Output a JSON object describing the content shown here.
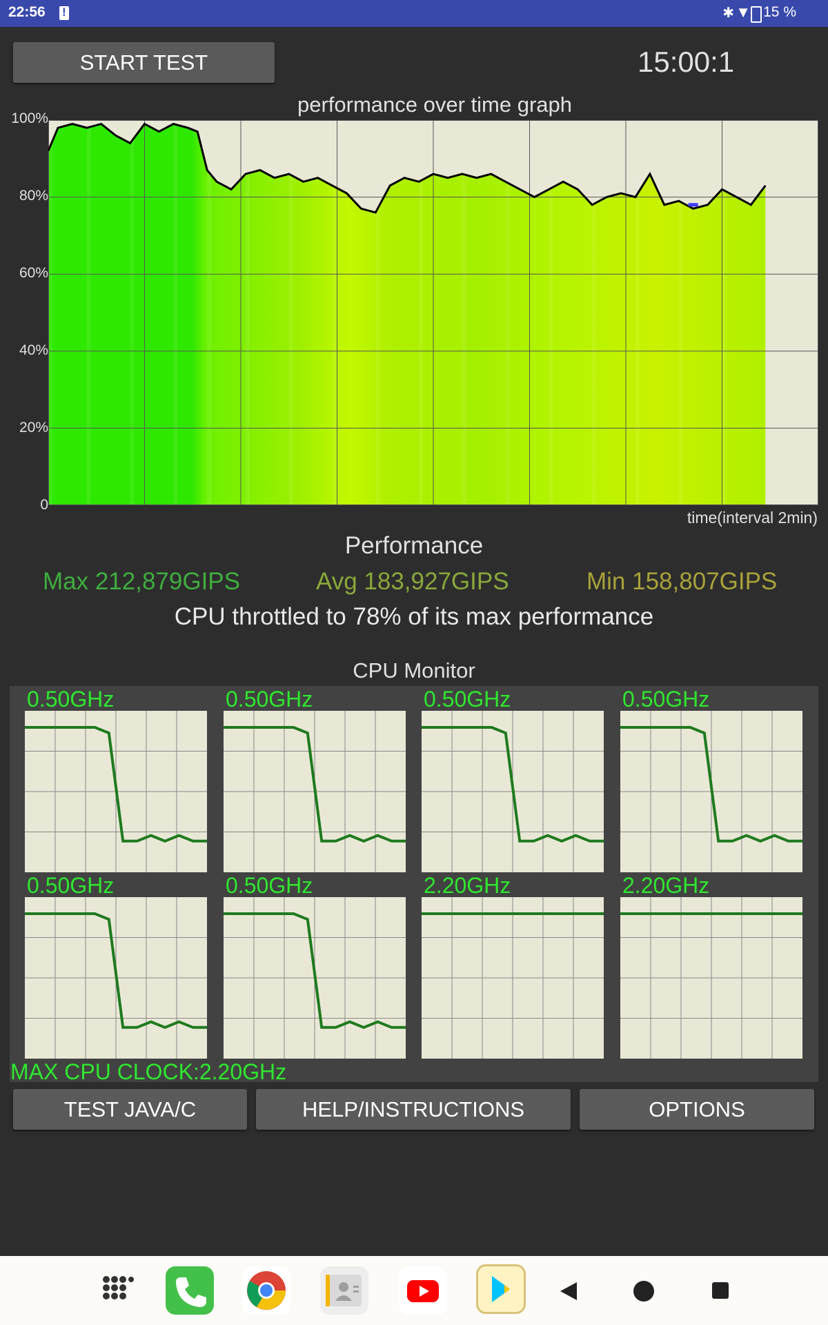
{
  "status_bar": {
    "time": "22:56",
    "battery_text": "15 %",
    "icons": [
      "notification-icon",
      "bluetooth-icon",
      "data-arrows-icon",
      "wifi-icon",
      "battery-icon"
    ]
  },
  "header": {
    "start_button": "START TEST",
    "timer": "15:00:1"
  },
  "graph": {
    "title": "performance over time graph",
    "x_label": "time(interval 2min)",
    "y_ticks": [
      "100%",
      "80%",
      "60%",
      "40%",
      "20%",
      "0"
    ],
    "line_color": "#000000",
    "avg_line_color": "#3c3cff"
  },
  "chart_data": {
    "type": "area",
    "title": "performance over time graph",
    "xlabel": "time(interval 2min)",
    "ylabel": "",
    "x_unit": "minutes",
    "x_range": [
      0,
      16
    ],
    "ylim": [
      0,
      100
    ],
    "y_ticks": [
      0,
      20,
      40,
      60,
      80,
      100
    ],
    "grid": true,
    "series": [
      {
        "x": [
          0,
          0.2,
          0.5,
          0.8,
          1.1,
          1.4,
          1.7,
          2.0,
          2.3,
          2.6,
          2.9,
          3.1,
          3.3,
          3.5,
          3.8,
          4.1,
          4.4,
          4.7,
          5.0,
          5.3,
          5.6,
          5.9,
          6.2,
          6.5,
          6.8,
          7.1,
          7.4,
          7.7,
          8.0,
          8.3,
          8.6,
          8.9,
          9.2,
          9.5,
          9.8,
          10.1,
          10.4,
          10.7,
          11.0,
          11.3,
          11.6,
          11.9,
          12.2,
          12.5,
          12.8,
          13.1,
          13.4,
          13.7,
          14.0,
          14.3,
          14.6,
          14.9
        ],
        "values": [
          92,
          98,
          99,
          98,
          99,
          96,
          94,
          99,
          97,
          99,
          98,
          97,
          87,
          84,
          82,
          86,
          87,
          85,
          86,
          84,
          85,
          83,
          81,
          77,
          76,
          83,
          85,
          84,
          86,
          85,
          86,
          85,
          86,
          84,
          82,
          80,
          82,
          84,
          82,
          78,
          80,
          81,
          80,
          86,
          78,
          79,
          77,
          78,
          82,
          80,
          78,
          83
        ]
      }
    ],
    "avg_marker": {
      "x_start": 13.3,
      "x_end": 13.5,
      "value": 78
    }
  },
  "performance": {
    "title": "Performance",
    "max": "Max 212,879GIPS",
    "avg": "Avg 183,927GIPS",
    "min": "Min 158,807GIPS",
    "max_color": "#3fae3f",
    "avg_color": "#8aa83a",
    "min_color": "#a8a23a",
    "throttle": "CPU throttled to 78% of its max performance"
  },
  "cpu_monitor": {
    "title": "CPU Monitor",
    "cores": [
      {
        "label": "0.50GHz",
        "profile": [
          1,
          1,
          1,
          1,
          1,
          1,
          0.96,
          0.2,
          0.2,
          0.24,
          0.2,
          0.24,
          0.2,
          0.2
        ]
      },
      {
        "label": "0.50GHz",
        "profile": [
          1,
          1,
          1,
          1,
          1,
          1,
          0.96,
          0.2,
          0.2,
          0.24,
          0.2,
          0.24,
          0.2,
          0.2
        ]
      },
      {
        "label": "0.50GHz",
        "profile": [
          1,
          1,
          1,
          1,
          1,
          1,
          0.96,
          0.2,
          0.2,
          0.24,
          0.2,
          0.24,
          0.2,
          0.2
        ]
      },
      {
        "label": "0.50GHz",
        "profile": [
          1,
          1,
          1,
          1,
          1,
          1,
          0.96,
          0.2,
          0.2,
          0.24,
          0.2,
          0.24,
          0.2,
          0.2
        ]
      },
      {
        "label": "0.50GHz",
        "profile": [
          1,
          1,
          1,
          1,
          1,
          1,
          0.96,
          0.2,
          0.2,
          0.24,
          0.2,
          0.24,
          0.2,
          0.2
        ]
      },
      {
        "label": "0.50GHz",
        "profile": [
          1,
          1,
          1,
          1,
          1,
          1,
          0.96,
          0.2,
          0.2,
          0.24,
          0.2,
          0.24,
          0.2,
          0.2
        ]
      },
      {
        "label": "2.20GHz",
        "profile": [
          1,
          1,
          1,
          1,
          1,
          1,
          1,
          1,
          1,
          1,
          1,
          1,
          1,
          1
        ]
      },
      {
        "label": "2.20GHz",
        "profile": [
          1,
          1,
          1,
          1,
          1,
          1,
          1,
          1,
          1,
          1,
          1,
          1,
          1,
          1
        ]
      }
    ],
    "max_clock": "MAX CPU CLOCK:2.20GHz",
    "line_color": "#1f7a1f"
  },
  "bottom_buttons": {
    "test": "TEST JAVA/C",
    "help": "HELP/INSTRUCTIONS",
    "options": "OPTIONS"
  },
  "nav_bar": {
    "apps": [
      "app-drawer-icon",
      "phone-icon",
      "chrome-icon",
      "contacts-icon",
      "youtube-icon",
      "play-store-icon"
    ],
    "controls": [
      "back-icon",
      "home-icon",
      "recents-icon"
    ]
  }
}
